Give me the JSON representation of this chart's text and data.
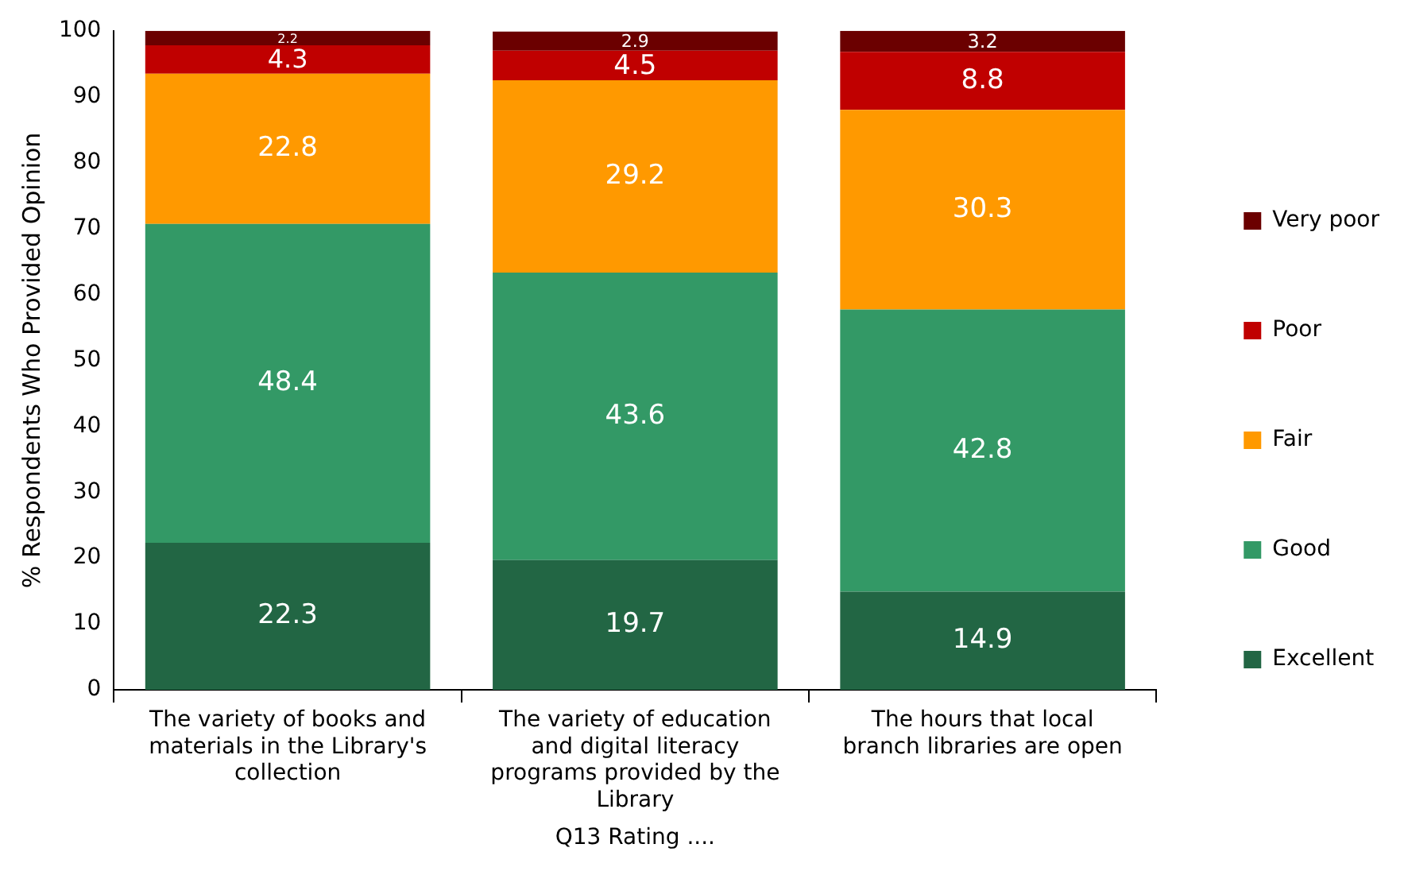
{
  "chart_data": {
    "type": "bar",
    "stacked": true,
    "xlabel": "Q13 Rating ....",
    "ylabel": "% Respondents Who Provided Opinion",
    "categories": [
      "The variety of books and materials in the Library's collection",
      "The variety of education and digital literacy programs provided by the Library",
      "The hours that local branch libraries are open"
    ],
    "series": [
      {
        "name": "Excellent",
        "color": "#226644",
        "values": [
          22.3,
          19.7,
          14.9
        ]
      },
      {
        "name": "Good",
        "color": "#339966",
        "values": [
          48.4,
          43.6,
          42.8
        ]
      },
      {
        "name": "Fair",
        "color": "#ff9900",
        "values": [
          22.8,
          29.2,
          30.3
        ]
      },
      {
        "name": "Poor",
        "color": "#c00000",
        "values": [
          4.3,
          4.5,
          8.8
        ]
      },
      {
        "name": "Very poor",
        "color": "#6b0000",
        "values": [
          2.2,
          2.9,
          3.2
        ]
      }
    ],
    "ylim": [
      0,
      100
    ],
    "yticks": [
      0,
      10,
      20,
      30,
      40,
      50,
      60,
      70,
      80,
      90,
      100
    ],
    "legend": "right",
    "data_labels": true
  }
}
